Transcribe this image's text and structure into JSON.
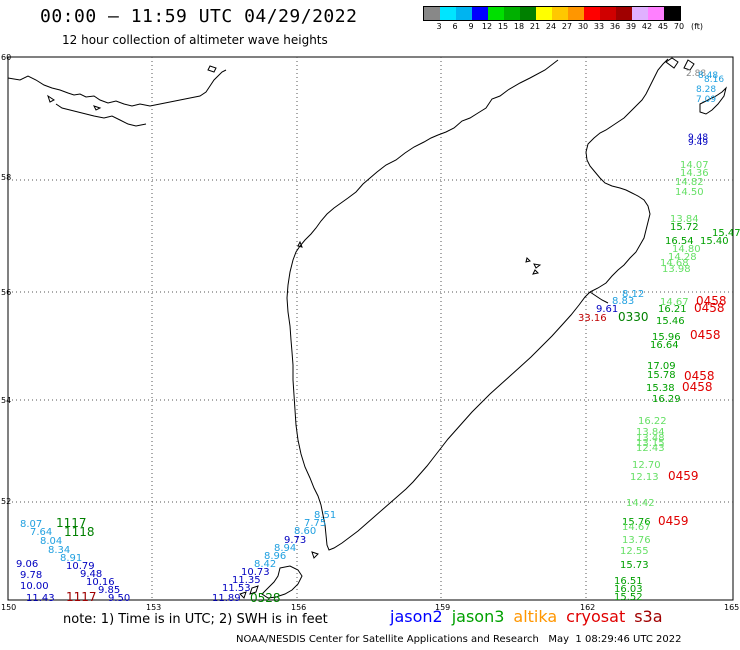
{
  "header": {
    "title": "00:00 – 11:59 UTC 04/29/2022",
    "subtitle": "12 hour collection of altimeter wave heights"
  },
  "legend": {
    "unit_label": "(ft)",
    "bins": [
      {
        "label": "3",
        "color": "#888888"
      },
      {
        "label": "6",
        "color": "#00e5ff"
      },
      {
        "label": "9",
        "color": "#00b4f0"
      },
      {
        "label": "12",
        "color": "#0000ff"
      },
      {
        "label": "15",
        "color": "#00e000"
      },
      {
        "label": "18",
        "color": "#00b000"
      },
      {
        "label": "21",
        "color": "#008000"
      },
      {
        "label": "24",
        "color": "#ffff00"
      },
      {
        "label": "27",
        "color": "#ffc800"
      },
      {
        "label": "30",
        "color": "#ff9600"
      },
      {
        "label": "33",
        "color": "#ff0000"
      },
      {
        "label": "36",
        "color": "#d00000"
      },
      {
        "label": "39",
        "color": "#a00000"
      },
      {
        "label": "42",
        "color": "#e0b0ff"
      },
      {
        "label": "45",
        "color": "#ff80ff"
      },
      {
        "label": "70",
        "color": "#000000"
      }
    ]
  },
  "axes": {
    "lat_labels": [
      "60",
      "58",
      "56",
      "54",
      "52",
      "50"
    ],
    "lon_labels": [
      "150",
      "153",
      "156",
      "159",
      "162",
      "165"
    ]
  },
  "map": {
    "features": [
      "Kamchatka Peninsula coastline",
      "Sea of Okhotsk",
      "Kuril Islands"
    ]
  },
  "tracks": [
    {
      "mission": "altika",
      "labels": [
        {
          "text": "14.07",
          "color": "#66e066"
        },
        {
          "text": "14.36",
          "color": "#66e066"
        },
        {
          "text": "14.82",
          "color": "#66e066"
        },
        {
          "text": "14.50",
          "color": "#66e066"
        },
        {
          "text": "13.84",
          "color": "#66e066"
        },
        {
          "text": "15.72",
          "color": "#00a000"
        },
        {
          "text": "16.54",
          "color": "#00a000"
        },
        {
          "text": "15.40",
          "color": "#00a000"
        },
        {
          "text": "14.80",
          "color": "#66e066"
        },
        {
          "text": "14.28",
          "color": "#66e066"
        },
        {
          "text": "14.68",
          "color": "#66e066"
        },
        {
          "text": "13.98",
          "color": "#66e066"
        },
        {
          "text": "15.47",
          "color": "#00a000"
        },
        {
          "text": "14.67",
          "color": "#66e066"
        },
        {
          "text": "16.21",
          "color": "#00a000"
        },
        {
          "text": "15.46",
          "color": "#00a000"
        },
        {
          "text": "15.96",
          "color": "#00a000"
        },
        {
          "text": "16.64",
          "color": "#00a000"
        },
        {
          "text": "17.09",
          "color": "#00a000"
        },
        {
          "text": "15.78",
          "color": "#00a000"
        },
        {
          "text": "15.38",
          "color": "#00a000"
        },
        {
          "text": "16.29",
          "color": "#00a000"
        },
        {
          "text": "16.22",
          "color": "#66e066"
        },
        {
          "text": "13.84",
          "color": "#66e066"
        },
        {
          "text": "13.48",
          "color": "#66e066"
        },
        {
          "text": "13.15",
          "color": "#66e066"
        },
        {
          "text": "12.43",
          "color": "#66e066"
        },
        {
          "text": "12.70",
          "color": "#66e066"
        },
        {
          "text": "12.13",
          "color": "#66e066"
        },
        {
          "text": "14.42",
          "color": "#66e066"
        },
        {
          "text": "15.76",
          "color": "#00a000"
        },
        {
          "text": "14.67",
          "color": "#66e066"
        },
        {
          "text": "13.76",
          "color": "#66e066"
        },
        {
          "text": "12.55",
          "color": "#66e066"
        },
        {
          "text": "15.73",
          "color": "#00a000"
        },
        {
          "text": "16.51",
          "color": "#00a000"
        },
        {
          "text": "16.03",
          "color": "#00a000"
        },
        {
          "text": "15.52",
          "color": "#00a000"
        }
      ]
    },
    {
      "mission": "time-stamps",
      "labels": [
        {
          "text": "0458",
          "color": "#e00000"
        },
        {
          "text": "0458",
          "color": "#e00000"
        },
        {
          "text": "0458",
          "color": "#e00000"
        },
        {
          "text": "0458",
          "color": "#e00000"
        },
        {
          "text": "0458",
          "color": "#e00000"
        },
        {
          "text": "0459",
          "color": "#e00000"
        },
        {
          "text": "0459",
          "color": "#e00000"
        },
        {
          "text": "0330",
          "color": "#008000"
        },
        {
          "text": "1117",
          "color": "#008000"
        },
        {
          "text": "1118",
          "color": "#008000"
        },
        {
          "text": "1117",
          "color": "#a00000"
        },
        {
          "text": "0528",
          "color": "#008000"
        }
      ]
    },
    {
      "mission": "kamchatka-east",
      "labels": [
        {
          "text": "8.12",
          "color": "#20a0e0"
        },
        {
          "text": "8.83",
          "color": "#20a0e0"
        },
        {
          "text": "9.61",
          "color": "#0000c0"
        },
        {
          "text": "33.16",
          "color": "#c00000"
        }
      ]
    },
    {
      "mission": "southwest",
      "labels": [
        {
          "text": "8.07",
          "color": "#20a0e0"
        },
        {
          "text": "7.64",
          "color": "#20a0e0"
        },
        {
          "text": "8.04",
          "color": "#20a0e0"
        },
        {
          "text": "8.34",
          "color": "#20a0e0"
        },
        {
          "text": "8.91",
          "color": "#20a0e0"
        },
        {
          "text": "10.79",
          "color": "#0000c0"
        },
        {
          "text": "9.48",
          "color": "#0000c0"
        },
        {
          "text": "10.16",
          "color": "#0000c0"
        },
        {
          "text": "9.85",
          "color": "#0000c0"
        },
        {
          "text": "9.50",
          "color": "#0000c0"
        },
        {
          "text": "9.06",
          "color": "#0000c0"
        },
        {
          "text": "9.78",
          "color": "#0000c0"
        },
        {
          "text": "10.00",
          "color": "#0000c0"
        },
        {
          "text": "11.43",
          "color": "#0000c0"
        }
      ]
    },
    {
      "mission": "kuril",
      "labels": [
        {
          "text": "8.51",
          "color": "#20a0e0"
        },
        {
          "text": "7.75",
          "color": "#20a0e0"
        },
        {
          "text": "8.60",
          "color": "#20a0e0"
        },
        {
          "text": "9.73",
          "color": "#0000c0"
        },
        {
          "text": "8.94",
          "color": "#20a0e0"
        },
        {
          "text": "8.96",
          "color": "#20a0e0"
        },
        {
          "text": "8.42",
          "color": "#20a0e0"
        },
        {
          "text": "10.73",
          "color": "#0000c0"
        },
        {
          "text": "11.35",
          "color": "#0000c0"
        },
        {
          "text": "11.53",
          "color": "#0000c0"
        },
        {
          "text": "11.89",
          "color": "#0000c0"
        }
      ]
    },
    {
      "mission": "northeast",
      "labels": [
        {
          "text": "2.88",
          "color": "#888888"
        },
        {
          "text": "8.48",
          "color": "#20a0e0"
        },
        {
          "text": "8.16",
          "color": "#20a0e0"
        },
        {
          "text": "8.28",
          "color": "#20a0e0"
        },
        {
          "text": "7.09",
          "color": "#20a0e0"
        },
        {
          "text": "9.48",
          "color": "#0000c0"
        },
        {
          "text": "9.49",
          "color": "#0000c0"
        }
      ]
    }
  ],
  "footer": {
    "note": "note: 1) Time is in UTC; 2) SWH is in feet",
    "credit": "NOAA/NESDIS Center for Satellite Applications and Research   May  1 08:29:46 UTC 2022",
    "missions": [
      {
        "name": "jason2",
        "color": "#0000ff"
      },
      {
        "name": "jason3",
        "color": "#00a000"
      },
      {
        "name": "altika",
        "color": "#ff9600"
      },
      {
        "name": "cryosat",
        "color": "#e00000"
      },
      {
        "name": "s3a",
        "color": "#a00000"
      }
    ]
  }
}
